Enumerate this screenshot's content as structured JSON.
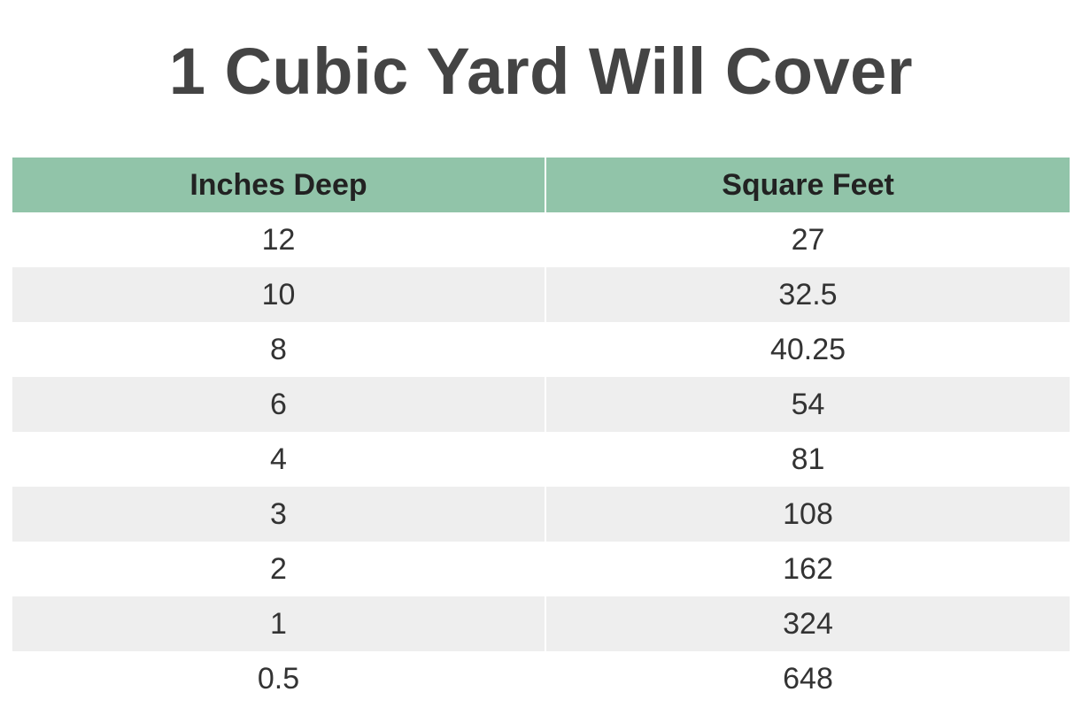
{
  "title": "1 Cubic Yard Will Cover",
  "colors": {
    "header_bg": "#91c4a9",
    "stripe_bg": "#eeeeee",
    "title_text": "#444444"
  },
  "table": {
    "headers": [
      "Inches Deep",
      "Square Feet"
    ],
    "rows": [
      [
        "12",
        "27"
      ],
      [
        "10",
        "32.5"
      ],
      [
        "8",
        "40.25"
      ],
      [
        "6",
        "54"
      ],
      [
        "4",
        "81"
      ],
      [
        "3",
        "108"
      ],
      [
        "2",
        "162"
      ],
      [
        "1",
        "324"
      ],
      [
        "0.5",
        "648"
      ]
    ]
  }
}
